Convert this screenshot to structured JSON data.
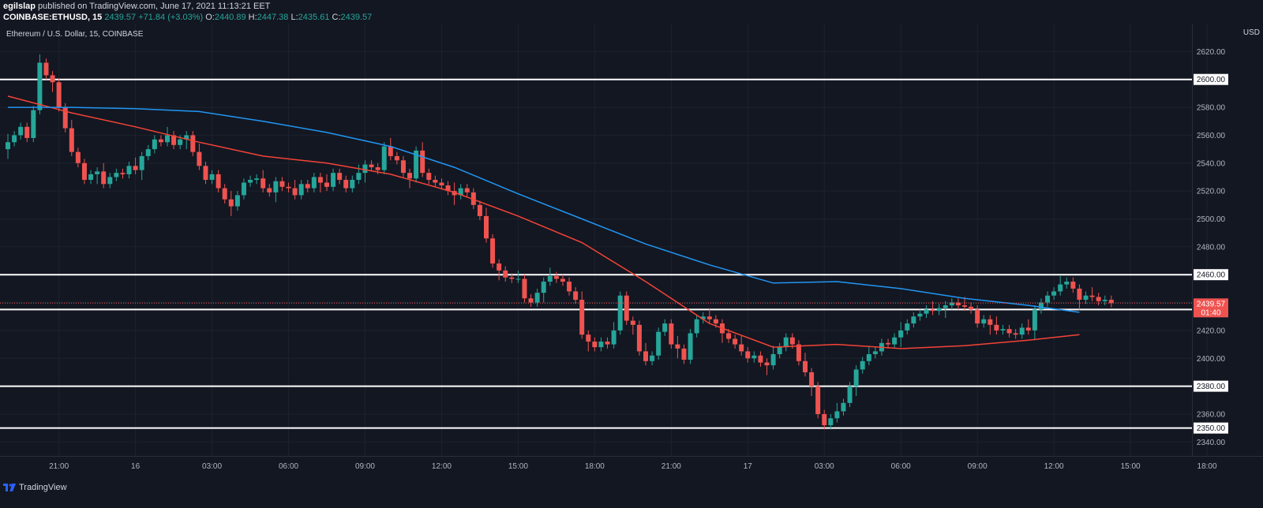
{
  "header": {
    "publisher": "egilslap",
    "published_text": "published on TradingView.com, June 17, 2021 11:13:21 EET",
    "symbol": "COINBASE:ETHUSD, 15",
    "last": "2439.57",
    "change": "+71.84 (+3.03%)",
    "o_label": "O:",
    "o": "2440.89",
    "h_label": "H:",
    "h": "2447.38",
    "l_label": "L:",
    "l": "2435.61",
    "c_label": "C:",
    "c": "2439.57"
  },
  "legend": {
    "title": "Ethereum / U.S. Dollar, 15, COINBASE"
  },
  "axis": {
    "currency": "USD",
    "price_label": "2439.57",
    "countdown": "01:40"
  },
  "footer": {
    "brand": "TradingView"
  },
  "colors": {
    "background": "#131722",
    "grid": "#1e222d",
    "up": "#26a69a",
    "down": "#ef5350",
    "ma_fast": "#f44336",
    "ma_slow": "#2196f3",
    "level": "#ffffff"
  },
  "chart_data": {
    "type": "candlestick",
    "title": "Ethereum / U.S. Dollar, 15, COINBASE",
    "ylim": [
      2330,
      2640
    ],
    "y_ticks": [
      2340,
      2360,
      2380,
      2400,
      2420,
      2440,
      2460,
      2480,
      2500,
      2520,
      2540,
      2560,
      2580,
      2600,
      2620
    ],
    "x_labels": [
      {
        "label": "21:00",
        "t": 8
      },
      {
        "label": "16",
        "t": 20
      },
      {
        "label": "03:00",
        "t": 32
      },
      {
        "label": "06:00",
        "t": 44
      },
      {
        "label": "09:00",
        "t": 56
      },
      {
        "label": "12:00",
        "t": 68
      },
      {
        "label": "15:00",
        "t": 80
      },
      {
        "label": "18:00",
        "t": 92
      },
      {
        "label": "21:00",
        "t": 104
      },
      {
        "label": "17",
        "t": 116
      },
      {
        "label": "03:00",
        "t": 128
      },
      {
        "label": "06:00",
        "t": 140
      },
      {
        "label": "09:00",
        "t": 152
      },
      {
        "label": "12:00",
        "t": 164
      },
      {
        "label": "15:00",
        "t": 176
      },
      {
        "label": "18:00",
        "t": 188
      }
    ],
    "horizontal_levels": [
      2600,
      2460,
      2435,
      2380,
      2350
    ],
    "level_labels": [
      "2600.00",
      "2460.00",
      "2435.00",
      "2380.00",
      "2350.00"
    ],
    "last_price": 2439.57,
    "closes": [
      2555,
      2560,
      2566,
      2558,
      2578,
      2612,
      2603,
      2598,
      2580,
      2565,
      2548,
      2540,
      2528,
      2532,
      2534,
      2525,
      2530,
      2533,
      2532,
      2538,
      2535,
      2545,
      2550,
      2557,
      2555,
      2560,
      2553,
      2557,
      2560,
      2548,
      2538,
      2528,
      2532,
      2522,
      2514,
      2509,
      2517,
      2526,
      2528,
      2529,
      2522,
      2519,
      2527,
      2523,
      2522,
      2517,
      2525,
      2522,
      2530,
      2526,
      2523,
      2533,
      2528,
      2522,
      2528,
      2533,
      2539,
      2537,
      2535,
      2552,
      2545,
      2542,
      2533,
      2529,
      2549,
      2533,
      2528,
      2526,
      2524,
      2520,
      2517,
      2522,
      2519,
      2510,
      2502,
      2486,
      2468,
      2463,
      2458,
      2457,
      2457,
      2443,
      2440,
      2447,
      2455,
      2459,
      2457,
      2455,
      2448,
      2442,
      2417,
      2412,
      2408,
      2412,
      2410,
      2420,
      2445,
      2427,
      2424,
      2405,
      2398,
      2402,
      2419,
      2425,
      2410,
      2407,
      2399,
      2418,
      2428,
      2430,
      2428,
      2425,
      2418,
      2414,
      2410,
      2405,
      2400,
      2402,
      2397,
      2395,
      2403,
      2408,
      2415,
      2410,
      2398,
      2390,
      2380,
      2360,
      2352,
      2357,
      2362,
      2368,
      2380,
      2392,
      2398,
      2403,
      2405,
      2411,
      2410,
      2415,
      2420,
      2425,
      2430,
      2432,
      2435,
      2434,
      2436,
      2438,
      2440,
      2438,
      2437,
      2435,
      2425,
      2428,
      2424,
      2420,
      2421,
      2418,
      2417,
      2422,
      2420,
      2435,
      2440,
      2445,
      2448,
      2453,
      2455,
      2450,
      2442,
      2445,
      2444,
      2441,
      2442,
      2439.57
    ],
    "series": [
      {
        "name": "",
        "color": "#f44336",
        "type": "line",
        "points": [
          [
            0,
            2588
          ],
          [
            10,
            2576
          ],
          [
            20,
            2566
          ],
          [
            30,
            2555
          ],
          [
            40,
            2545
          ],
          [
            50,
            2540
          ],
          [
            60,
            2532
          ],
          [
            70,
            2519
          ],
          [
            80,
            2502
          ],
          [
            90,
            2483
          ],
          [
            100,
            2455
          ],
          [
            110,
            2425
          ],
          [
            120,
            2408
          ],
          [
            130,
            2410
          ],
          [
            140,
            2407
          ],
          [
            150,
            2409
          ],
          [
            160,
            2413
          ],
          [
            168,
            2417
          ]
        ]
      },
      {
        "name": "",
        "color": "#2196f3",
        "type": "line",
        "points": [
          [
            0,
            2580
          ],
          [
            10,
            2580
          ],
          [
            20,
            2579
          ],
          [
            30,
            2577
          ],
          [
            40,
            2570
          ],
          [
            50,
            2562
          ],
          [
            60,
            2552
          ],
          [
            70,
            2537
          ],
          [
            80,
            2518
          ],
          [
            90,
            2500
          ],
          [
            100,
            2482
          ],
          [
            110,
            2467
          ],
          [
            120,
            2454
          ],
          [
            130,
            2455
          ],
          [
            140,
            2450
          ],
          [
            150,
            2443
          ],
          [
            160,
            2438
          ],
          [
            168,
            2433
          ]
        ]
      }
    ]
  }
}
